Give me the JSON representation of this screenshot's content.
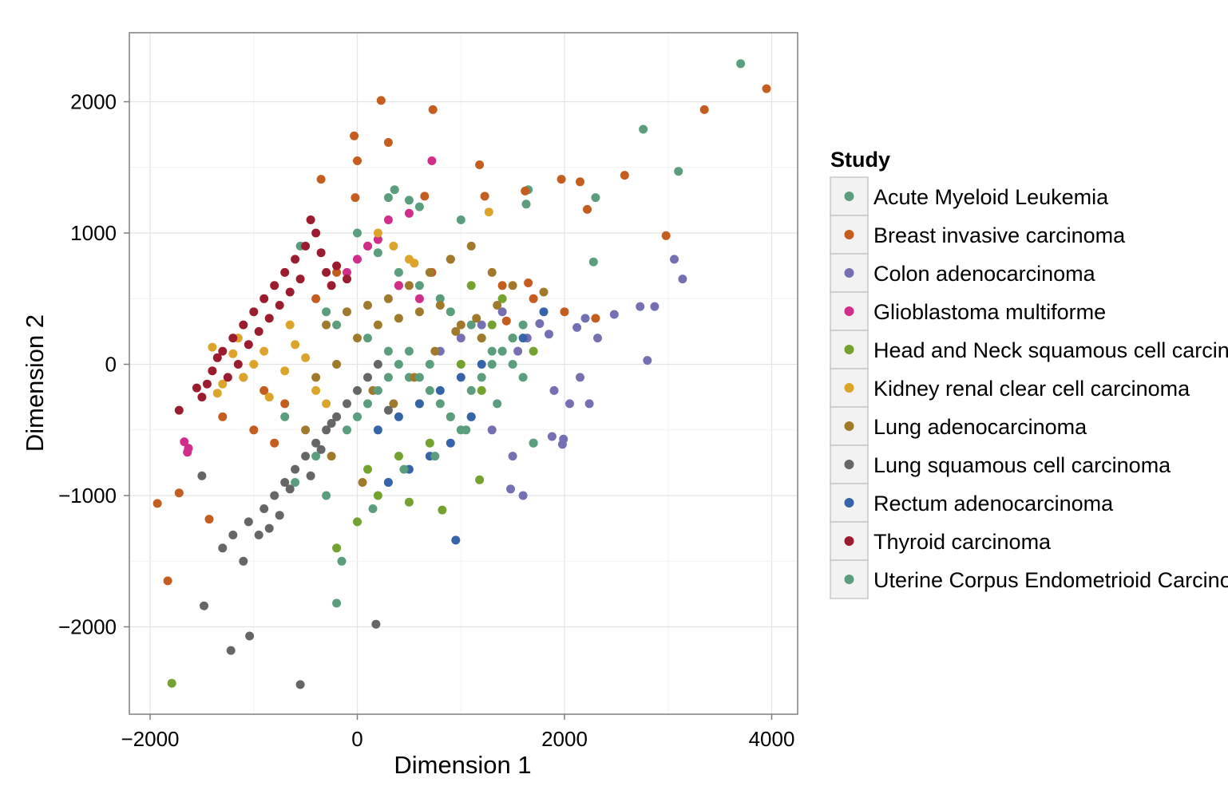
{
  "chart_data": {
    "type": "scatter",
    "title": "",
    "xlabel": "Dimension 1",
    "ylabel": "Dimension 2",
    "xlim": [
      -2200,
      4250
    ],
    "ylim": [
      -2650,
      2550
    ],
    "x_ticks": [
      -2000,
      0,
      2000,
      4000
    ],
    "y_ticks": [
      -2000,
      -1000,
      0,
      1000,
      2000
    ],
    "x_tick_labels": [
      "−2000",
      "0",
      "2000",
      "4000"
    ],
    "y_tick_labels": [
      "−2000",
      "−1000",
      "0",
      "1000",
      "2000"
    ],
    "grid": true,
    "legend": {
      "title": "Study",
      "position": "right"
    },
    "series": [
      {
        "name": "Acute Myeloid Leukemia",
        "color": "#5a9e7e",
        "x": [
          3700,
          2760,
          3100,
          2300,
          2280,
          1630,
          1650,
          360,
          500,
          600,
          300,
          1000,
          -550,
          0,
          200,
          400,
          600,
          800,
          900,
          1100,
          1200,
          1300,
          1500,
          1600,
          -300,
          -200,
          100,
          300,
          700,
          500
        ],
        "y": [
          2290,
          1790,
          1470,
          1270,
          780,
          1220,
          1330,
          1330,
          1250,
          1200,
          1270,
          1100,
          900,
          1000,
          850,
          700,
          600,
          500,
          400,
          300,
          200,
          100,
          0,
          -100,
          400,
          300,
          200,
          100,
          0,
          -100
        ]
      },
      {
        "name": "Breast invasive carcinoma",
        "color": "#c45d1e",
        "x": [
          3950,
          3350,
          2980,
          2580,
          2220,
          2150,
          1970,
          1620,
          1650,
          1440,
          1230,
          1180,
          730,
          650,
          230,
          300,
          -30,
          0,
          -350,
          -20,
          -1930,
          -1720,
          -1830,
          -1430,
          720,
          900,
          1400,
          1700,
          2000,
          2300,
          -400,
          -200,
          100,
          400,
          -700,
          -900,
          -1100,
          -1300,
          -1000,
          -800
        ],
        "y": [
          2100,
          1940,
          980,
          1440,
          1180,
          1390,
          1410,
          1320,
          620,
          330,
          1280,
          1520,
          1940,
          1280,
          2010,
          1690,
          1740,
          1550,
          1410,
          1270,
          -1060,
          -980,
          -1650,
          -1180,
          700,
          800,
          600,
          500,
          400,
          350,
          500,
          700,
          900,
          600,
          -300,
          -200,
          -100,
          -400,
          -500,
          -600
        ]
      },
      {
        "name": "Colon adenocarcinoma",
        "color": "#7570b3",
        "x": [
          3060,
          3140,
          2870,
          2730,
          2800,
          2480,
          2320,
          2200,
          2120,
          1990,
          1980,
          1880,
          1850,
          1760,
          1600,
          1480,
          1550,
          1640,
          1900,
          2050,
          1400,
          1200,
          1000,
          800,
          2240,
          2150,
          1700,
          1500,
          1300,
          1100
        ],
        "y": [
          800,
          650,
          440,
          440,
          30,
          380,
          200,
          350,
          280,
          -570,
          -610,
          -550,
          230,
          310,
          -1000,
          -950,
          100,
          200,
          -200,
          -300,
          400,
          300,
          200,
          100,
          -300,
          -100,
          -600,
          -700,
          -500,
          -400
        ]
      },
      {
        "name": "Glioblastoma multiforme",
        "color": "#d12e8b",
        "x": [
          720,
          -1640,
          500,
          300,
          200,
          100,
          -100,
          0,
          400,
          600,
          -1630,
          -1670
        ],
        "y": [
          1550,
          -670,
          1150,
          1100,
          950,
          900,
          700,
          800,
          600,
          500,
          -640,
          -590
        ]
      },
      {
        "name": "Head and Neck squamous cell carcinoma",
        "color": "#73a22f",
        "x": [
          -1790,
          1180,
          820,
          500,
          300,
          100,
          1300,
          1500,
          1700,
          1200,
          900,
          700,
          400,
          200,
          0,
          -200,
          1100,
          1400,
          1000,
          600
        ],
        "y": [
          -2430,
          -880,
          -1110,
          -1050,
          -900,
          -800,
          300,
          200,
          100,
          -200,
          -400,
          -600,
          -700,
          -1000,
          -1200,
          -1400,
          600,
          500,
          0,
          -300
        ]
      },
      {
        "name": "Kidney renal clear cell carcinoma",
        "color": "#dca42a",
        "x": [
          1270,
          550,
          -1400,
          -1350,
          -1200,
          -1100,
          -1000,
          -900,
          -700,
          -600,
          -500,
          -400,
          -300,
          200,
          350,
          500,
          -1300,
          -1150,
          -850,
          -650
        ],
        "y": [
          1160,
          770,
          130,
          -220,
          80,
          -100,
          0,
          100,
          -50,
          150,
          50,
          -200,
          -300,
          1000,
          900,
          800,
          -150,
          200,
          -250,
          300
        ]
      },
      {
        "name": "Lung adenocarcinoma",
        "color": "#a07a2a",
        "x": [
          1100,
          1300,
          1500,
          1800,
          900,
          700,
          500,
          300,
          100,
          -100,
          -300,
          0,
          200,
          400,
          600,
          800,
          1000,
          1200,
          -200,
          -400,
          150,
          350,
          550,
          750,
          950,
          1150,
          1350,
          -500,
          -250,
          50
        ],
        "y": [
          900,
          700,
          600,
          550,
          800,
          700,
          600,
          500,
          450,
          400,
          300,
          200,
          300,
          350,
          400,
          450,
          300,
          200,
          0,
          -100,
          -200,
          -300,
          -100,
          100,
          250,
          350,
          450,
          -500,
          -700,
          -900
        ]
      },
      {
        "name": "Lung squamous cell carcinoma",
        "color": "#666666",
        "x": [
          -1480,
          -1220,
          -1040,
          -1200,
          -1500,
          -550,
          180,
          -1050,
          -900,
          -800,
          -700,
          -600,
          -500,
          -400,
          -300,
          -200,
          -100,
          0,
          100,
          200,
          -1300,
          -1100,
          -950,
          -850,
          -750,
          -650,
          -450,
          -350,
          -250,
          300
        ],
        "y": [
          -1840,
          -2180,
          -2070,
          -1300,
          -850,
          -2440,
          -1980,
          -1200,
          -1100,
          -1000,
          -900,
          -800,
          -700,
          -600,
          -500,
          -400,
          -300,
          -200,
          -100,
          0,
          -1400,
          -1500,
          -1300,
          -1250,
          -1150,
          -950,
          -850,
          -650,
          -450,
          -350
        ]
      },
      {
        "name": "Rectum adenocarcinoma",
        "color": "#3565a8",
        "x": [
          950,
          1800,
          1600,
          1400,
          1200,
          1000,
          800,
          600,
          400,
          200,
          1100,
          900,
          700,
          500,
          300
        ],
        "y": [
          -1340,
          400,
          200,
          100,
          0,
          -100,
          -200,
          -300,
          -400,
          -500,
          -400,
          -600,
          -700,
          -800,
          -900
        ]
      },
      {
        "name": "Thyroid carcinoma",
        "color": "#9b1c2e",
        "x": [
          -450,
          -1720,
          -1550,
          -1300,
          -1200,
          -1100,
          -1000,
          -900,
          -800,
          -700,
          -600,
          -500,
          -400,
          -1250,
          -1150,
          -1050,
          -950,
          -850,
          -750,
          -650,
          -550,
          -350,
          -1350,
          -1400,
          -1450,
          -1500,
          -300,
          -250,
          -200,
          -100
        ],
        "y": [
          1100,
          -350,
          -180,
          100,
          200,
          300,
          400,
          500,
          600,
          700,
          800,
          900,
          1000,
          -100,
          0,
          150,
          250,
          350,
          450,
          550,
          650,
          850,
          50,
          -50,
          -150,
          -250,
          700,
          600,
          750,
          650
        ]
      },
      {
        "name": "Uterine Corpus Endometrioid Carcinoma",
        "color": "#5a9e7e",
        "x": [
          -200,
          -150,
          -600,
          -400,
          -100,
          0,
          100,
          200,
          300,
          400,
          500,
          600,
          700,
          800,
          900,
          1000,
          1100,
          1200,
          1300,
          1400,
          1500,
          1600,
          1700,
          -700,
          -300,
          150,
          450,
          750,
          1050,
          1350
        ],
        "y": [
          -1820,
          -1500,
          -900,
          -700,
          -500,
          -400,
          -300,
          -200,
          -100,
          0,
          100,
          -100,
          -200,
          -300,
          -400,
          -500,
          -200,
          -100,
          0,
          100,
          200,
          300,
          -600,
          -400,
          -1000,
          -1100,
          -800,
          -700,
          -500,
          -300
        ]
      }
    ]
  }
}
